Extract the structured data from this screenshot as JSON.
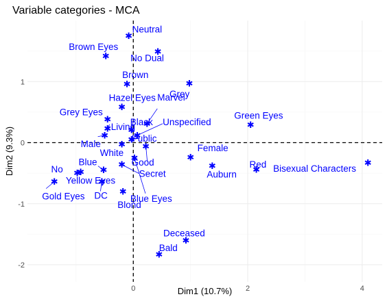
{
  "chart_data": {
    "type": "scatter",
    "title": "Variable categories - MCA",
    "xlabel": "Dim1 (10.7%)",
    "ylabel": "Dim2 (9.3%)",
    "xlim": [
      -1.85,
      4.35
    ],
    "ylim": [
      -2.28,
      2.0
    ],
    "xticks": [
      0,
      2,
      4
    ],
    "yticks": [
      -2,
      -1,
      0,
      1
    ],
    "reference_lines": {
      "x": 0,
      "y": 0
    },
    "grid": true,
    "point_color": "#0000ff",
    "marker": "*",
    "points": [
      {
        "label": "Neutral",
        "x": -0.08,
        "y": 1.75
      },
      {
        "label": "No Dual",
        "x": 0.43,
        "y": 1.49
      },
      {
        "label": "Brown Eyes",
        "x": -0.48,
        "y": 1.42
      },
      {
        "label": "Brown",
        "x": -0.11,
        "y": 0.96
      },
      {
        "label": "Grey",
        "x": 0.98,
        "y": 0.97
      },
      {
        "label": "Hazel Eyes",
        "x": -0.2,
        "y": 0.58
      },
      {
        "label": "Grey Eyes",
        "x": -0.45,
        "y": 0.38
      },
      {
        "label": "Black",
        "x": -0.03,
        "y": 0.21
      },
      {
        "label": "Marvel",
        "x": 0.24,
        "y": 0.31
      },
      {
        "label": "Living",
        "x": -0.45,
        "y": 0.23
      },
      {
        "label": "Unspecified",
        "x": 0.07,
        "y": 0.12
      },
      {
        "label": "Green Eyes",
        "x": 2.05,
        "y": 0.29
      },
      {
        "label": "Male",
        "x": -0.5,
        "y": 0.12
      },
      {
        "label": "Public",
        "x": -0.03,
        "y": 0.05
      },
      {
        "label": "Female",
        "x": 1.0,
        "y": -0.24
      },
      {
        "label": "White",
        "x": -0.2,
        "y": -0.03
      },
      {
        "label": "Good",
        "x": 0.22,
        "y": -0.06
      },
      {
        "label": "Blue",
        "x": -0.92,
        "y": -0.48
      },
      {
        "label": "No",
        "x": -0.98,
        "y": -0.5
      },
      {
        "label": "Secret",
        "x": -0.2,
        "y": -0.36
      },
      {
        "label": "Red",
        "x": 2.15,
        "y": -0.44
      },
      {
        "label": "Bisexual Characters",
        "x": 4.1,
        "y": -0.33
      },
      {
        "label": "Auburn",
        "x": 1.38,
        "y": -0.38
      },
      {
        "label": "Yellow Eyes",
        "x": -0.52,
        "y": -0.45
      },
      {
        "label": "Gold Eyes",
        "x": -1.38,
        "y": -0.64
      },
      {
        "label": "Blue Eyes",
        "x": 0.02,
        "y": -0.25
      },
      {
        "label": "DC",
        "x": -0.55,
        "y": -0.64
      },
      {
        "label": "Blond",
        "x": -0.18,
        "y": -0.8
      },
      {
        "label": "Deceased",
        "x": 0.92,
        "y": -1.6
      },
      {
        "label": "Bald",
        "x": 0.45,
        "y": -1.83
      }
    ]
  }
}
